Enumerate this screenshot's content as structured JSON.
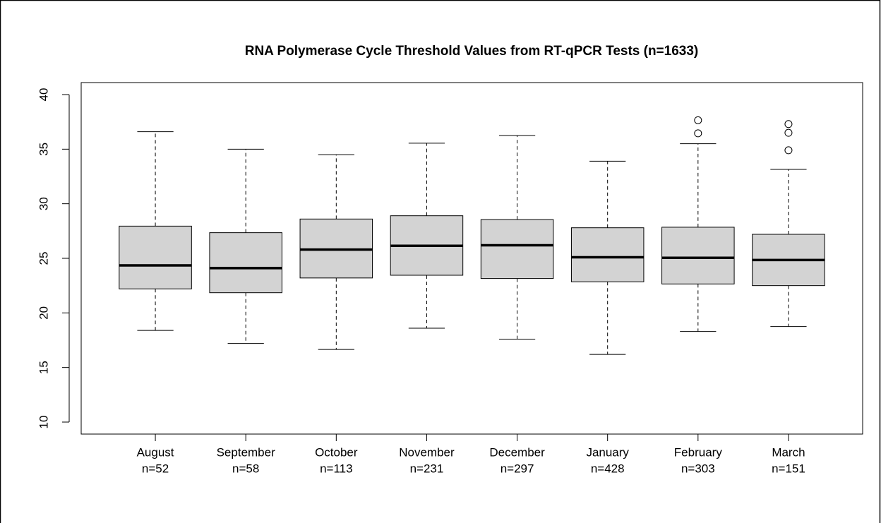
{
  "chart_data": {
    "type": "box",
    "title": "RNA Polymerase Cycle Threshold Values from RT-qPCR Tests (n=1633)",
    "categories": [
      "August",
      "September",
      "October",
      "November",
      "December",
      "January",
      "February",
      "March"
    ],
    "sublabels": [
      "n=52",
      "n=58",
      "n=113",
      "n=231",
      "n=297",
      "n=428",
      "n=303",
      "n=151"
    ],
    "boxes": [
      {
        "min": 18.4,
        "q1": 22.2,
        "median": 24.35,
        "q3": 27.95,
        "max": 36.6,
        "outliers": []
      },
      {
        "min": 17.2,
        "q1": 21.85,
        "median": 24.1,
        "q3": 27.35,
        "max": 35.0,
        "outliers": []
      },
      {
        "min": 16.65,
        "q1": 23.2,
        "median": 25.8,
        "q3": 28.6,
        "max": 34.5,
        "outliers": []
      },
      {
        "min": 18.6,
        "q1": 23.45,
        "median": 26.15,
        "q3": 28.9,
        "max": 35.55,
        "outliers": []
      },
      {
        "min": 17.6,
        "q1": 23.15,
        "median": 26.2,
        "q3": 28.55,
        "max": 36.25,
        "outliers": []
      },
      {
        "min": 16.2,
        "q1": 22.85,
        "median": 25.1,
        "q3": 27.8,
        "max": 33.9,
        "outliers": []
      },
      {
        "min": 18.3,
        "q1": 22.65,
        "median": 25.05,
        "q3": 27.85,
        "max": 35.5,
        "outliers": [
          36.45,
          37.65
        ]
      },
      {
        "min": 18.75,
        "q1": 22.5,
        "median": 24.85,
        "q3": 27.2,
        "max": 33.15,
        "outliers": [
          34.9,
          36.5,
          37.3
        ]
      }
    ],
    "color": "#d3d3d3",
    "ylim": [
      8.9,
      41.1
    ],
    "yticks": [
      10,
      15,
      20,
      25,
      30,
      35,
      40
    ],
    "grid": false
  }
}
